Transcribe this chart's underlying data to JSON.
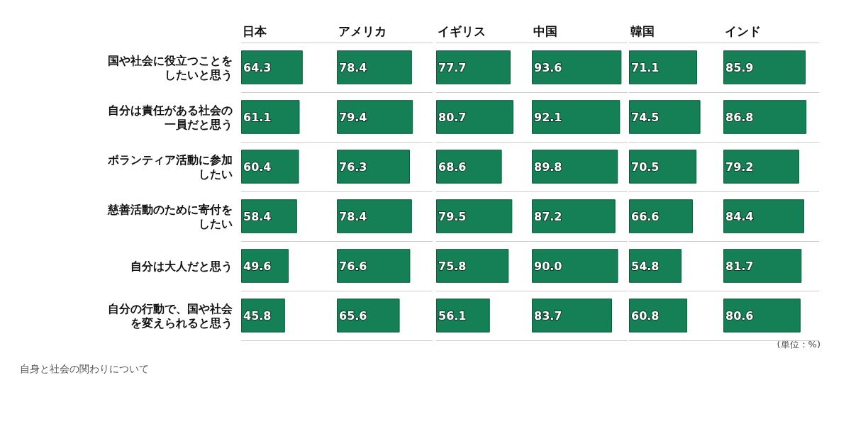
{
  "chart_data": [
    {
      "type": "bar",
      "orientation": "horizontal",
      "title": "日本",
      "categories": [
        "国や社会に役立つことをしたいと思う",
        "自分は責任がある社会の一員だと思う",
        "ボランティア活動に参加したい",
        "慈善活動のために寄付をしたい",
        "自分は大人だと思う",
        "自分の行動で、国や社会を変えられると思う"
      ],
      "values": [
        64.3,
        61.1,
        60.4,
        58.4,
        49.6,
        45.8
      ],
      "color": "#157f56",
      "xlim": [
        0,
        100
      ],
      "data_labels": true,
      "grid": "y",
      "tick_labels": "y",
      "annotations": [
        "自身と社会の関わりについて"
      ]
    },
    {
      "type": "bar",
      "orientation": "horizontal",
      "title": "アメリカ",
      "categories": [
        "国や社会に役立つことをしたいと思う",
        "自分は責任がある社会の一員だと思う",
        "ボランティア活動に参加したい",
        "慈善活動のために寄付をしたい",
        "自分は大人だと思う",
        "自分の行動で、国や社会を変えられると思う"
      ],
      "values": [
        78.4,
        79.4,
        76.3,
        78.4,
        76.6,
        65.6
      ],
      "color": "#157f56",
      "xlim": [
        0,
        100
      ],
      "data_labels": true,
      "grid": "y",
      "tick_labels": false
    },
    {
      "type": "bar",
      "orientation": "horizontal",
      "title": "イギリス",
      "categories": [
        "国や社会に役立つことをしたいと思う",
        "自分は責任がある社会の一員だと思う",
        "ボランティア活動に参加したい",
        "慈善活動のために寄付をしたい",
        "自分は大人だと思う",
        "自分の行動で、国や社会を変えられると思う"
      ],
      "values": [
        77.7,
        80.7,
        68.6,
        79.5,
        75.8,
        56.1
      ],
      "color": "#157f56",
      "xlim": [
        0,
        100
      ],
      "data_labels": true,
      "grid": "y",
      "tick_labels": false
    },
    {
      "type": "bar",
      "orientation": "horizontal",
      "title": "中国",
      "categories": [
        "国や社会に役立つことをしたいと思う",
        "自分は責任がある社会の一員だと思う",
        "ボランティア活動に参加したい",
        "慈善活動のために寄付をしたい",
        "自分は大人だと思う",
        "自分の行動で、国や社会を変えられると思う"
      ],
      "values": [
        93.6,
        92.1,
        89.8,
        87.2,
        90.0,
        83.7
      ],
      "value_labels": [
        "93.6",
        "92.1",
        "89.8",
        "87.2",
        "90.0",
        "83.7"
      ],
      "color": "#157f56",
      "xlim": [
        0,
        100
      ],
      "data_labels": true,
      "grid": "y",
      "tick_labels": false
    },
    {
      "type": "bar",
      "orientation": "horizontal",
      "title": "韓国",
      "categories": [
        "国や社会に役立つことをしたいと思う",
        "自分は責任がある社会の一員だと思う",
        "ボランティア活動に参加したい",
        "慈善活動のために寄付をしたい",
        "自分は大人だと思う",
        "自分の行動で、国や社会を変えられると思う"
      ],
      "values": [
        71.1,
        74.5,
        70.5,
        66.6,
        54.8,
        60.8
      ],
      "color": "#157f56",
      "xlim": [
        0,
        100
      ],
      "data_labels": true,
      "grid": "y",
      "tick_labels": false
    },
    {
      "type": "bar",
      "orientation": "horizontal",
      "title": "インド",
      "categories": [
        "国や社会に役立つことをしたいと思う",
        "自分は責任がある社会の一員だと思う",
        "ボランティア活動に参加したい",
        "慈善活動のために寄付をしたい",
        "自分は大人だと思う",
        "自分の行動で、国や社会を変えられると思う"
      ],
      "values": [
        85.9,
        86.8,
        79.2,
        84.4,
        81.7,
        80.6
      ],
      "color": "#157f56",
      "xlim": [
        0,
        100
      ],
      "data_labels": true,
      "grid": "y",
      "tick_labels": false,
      "annotations": [
        "(単位：%)"
      ]
    }
  ]
}
